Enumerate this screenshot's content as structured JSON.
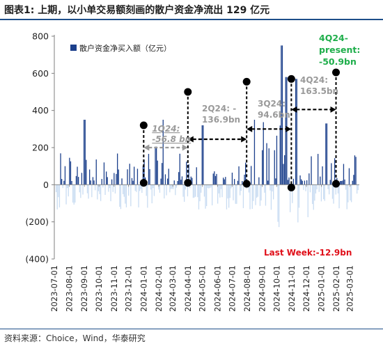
{
  "title": "图表1:  上期，以小单交易额刻画的散户资金净流出 129 亿元",
  "source": "资料来源：Choice，Wind，华泰研究",
  "colors": {
    "inflow": "#1b3f8b",
    "outflow": "#c9dcf2",
    "annot_gray": "#9a9a9a",
    "annot_green": "#1fae4b",
    "annot_red": "#e0101a"
  },
  "chart_data": {
    "type": "bar",
    "legend": "散户资金净买入额（亿元）",
    "ylim": [
      -400,
      800
    ],
    "yticks": [
      -400,
      -200,
      0,
      200,
      400,
      600,
      800
    ],
    "ytick_labels": [
      "(400)",
      "(200)",
      "0",
      "200",
      "400",
      "600",
      "800"
    ],
    "grid": false,
    "xtick_labels": [
      "2023-07-01",
      "2023-08-01",
      "2023-09-01",
      "2023-10-01",
      "2023-11-01",
      "2023-12-01",
      "2024-01-01",
      "2024-02-01",
      "2024-03-01",
      "2024-04-01",
      "2024-05-01",
      "2024-06-01",
      "2024-07-01",
      "2024-08-01",
      "2024-09-01",
      "2024-10-01",
      "2024-11-01",
      "2024-12-01",
      "2025-01-01",
      "2025-02-01",
      "2025-03-01"
    ],
    "inflow_peaks": [
      {
        "x": "2023-09-01",
        "value": 350
      },
      {
        "x": "2024-01-25",
        "value": 205
      },
      {
        "x": "2024-02-09",
        "value": 350
      },
      {
        "x": "2024-04-30",
        "value": 320
      },
      {
        "x": "2024-08-15",
        "value": 350
      },
      {
        "x": "2024-10-10",
        "value": 750
      },
      {
        "x": "2024-10-20",
        "value": 580
      },
      {
        "x": "2024-11-10",
        "value": 570
      },
      {
        "x": "2025-01-10",
        "value": 330
      }
    ],
    "annotations": [
      {
        "label": "1Q24: -56.8 bn",
        "x_start": "2024-01-01",
        "x_end": "2024-04-01",
        "marker_values": [
          320,
          10
        ],
        "arrow_value": 200
      },
      {
        "label": "2Q24: -136.9bn",
        "x_start": "2024-04-01",
        "x_end": "2024-07-31",
        "marker_values": [
          500,
          10
        ],
        "arrow_value": 245
      },
      {
        "label": "3Q24: 94.6bn",
        "x_start": "2024-07-31",
        "x_end": "2024-10-31",
        "marker_values": [
          555,
          5
        ],
        "arrow_value": 300
      },
      {
        "label": "4Q24: 163.5bn",
        "x_start": "2024-10-31",
        "x_end": "2025-01-31",
        "marker_values": [
          570,
          -15
        ],
        "arrow_value": 405
      },
      {
        "label": "4Q24-present: -50.9bn",
        "x_start": "2025-01-31",
        "marker_values": [
          605,
          5
        ]
      }
    ],
    "last_week_label": "Last Week:-12.9bn"
  }
}
